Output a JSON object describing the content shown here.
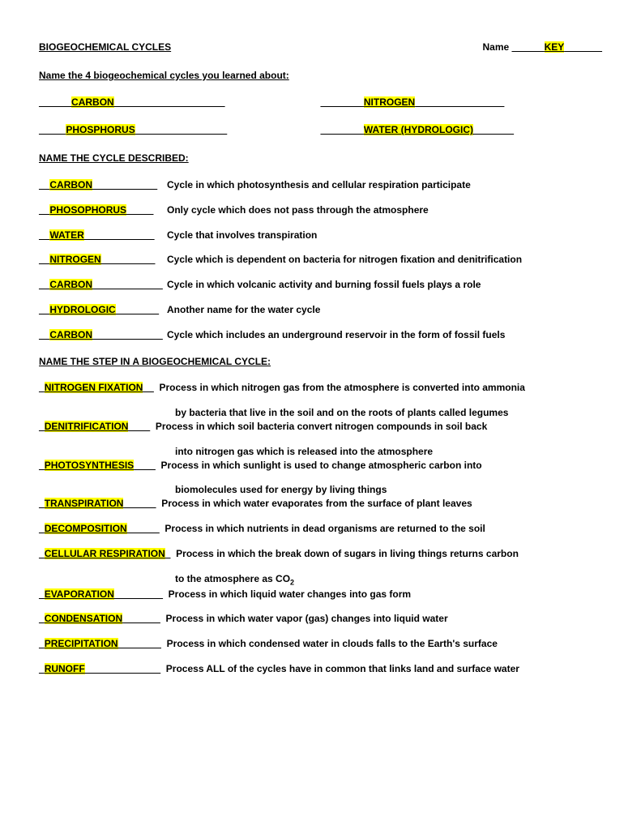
{
  "header": {
    "title": "BIOGEOCHEMICAL CYCLES",
    "name_label": "Name ",
    "blank_prefix": "______",
    "key_text": "KEY",
    "blank_suffix": "_______"
  },
  "section1": {
    "heading": "Name the 4 biogeochemical cycles you learned about:",
    "cycles": [
      {
        "prefix": "______",
        "answer": "CARBON",
        "suffix": "______ ______________"
      },
      {
        "prefix": "________",
        "answer": "NITROGEN",
        "suffix": " ________________"
      },
      {
        "prefix": "_____",
        "answer": "PHOSPHORUS",
        "suffix": "_________________"
      },
      {
        "prefix": "________",
        "answer": "WATER (HYDROLOGIC)",
        "suffix": " _______"
      }
    ]
  },
  "section2": {
    "heading": "NAME THE CYCLE DESCRIBED:",
    "items": [
      {
        "answer": "CARBON",
        "fill": "____________",
        "desc": "Cycle in which photosynthesis and cellular respiration participate"
      },
      {
        "answer": "PHOSOPHORUS",
        "fill": "_____",
        "desc": "Only cycle which does not pass through the atmosphere"
      },
      {
        "answer": "WATER",
        "fill": "_____________",
        "desc": "Cycle that involves transpiration"
      },
      {
        "answer": "NITROGEN",
        "fill": "__________",
        "desc": "Cycle which is dependent on bacteria for nitrogen fixation and denitrification"
      },
      {
        "answer": "CARBON",
        "fill": "_____________",
        "desc": "Cycle in which volcanic activity and burning fossil fuels plays a role"
      },
      {
        "answer": "HYDROLOGIC",
        "fill": "________",
        "desc": "Another name for the water cycle"
      },
      {
        "answer": "CARBON",
        "fill": "_____________",
        "desc": "Cycle which includes an underground reservoir in the form of fossil fuels"
      }
    ]
  },
  "section3": {
    "heading": "NAME THE STEP IN A BIOGEOCHEMICAL CYCLE:",
    "items": [
      {
        "answer": "NITROGEN FIXATION",
        "fill": "__",
        "desc": "Process in which nitrogen gas from the atmosphere is converted into ammonia",
        "cont": "by bacteria that live in the soil and on the roots of plants called legumes"
      },
      {
        "answer": "DENITRIFICATION",
        "fill": "____",
        "desc": "Process in which soil bacteria convert nitrogen compounds in soil back",
        "cont": "into nitrogen gas which is released into the atmosphere"
      },
      {
        "answer": "PHOTOSYNTHESIS",
        "fill": "____",
        "desc": "Process in which sunlight is used to change atmospheric carbon into",
        "cont": "biomolecules used for energy by living things"
      },
      {
        "answer": "TRANSPIRATION",
        "fill": "______",
        "desc": "Process in which water evaporates from the surface of plant leaves",
        "cont": ""
      },
      {
        "answer": "DECOMPOSITION",
        "fill": "______",
        "desc": "Process in which nutrients in dead organisms are returned to the soil",
        "cont": ""
      },
      {
        "answer": "CELLULAR RESPIRATION",
        "fill": "_",
        "desc": "Process in which the break down of sugars in living things returns carbon",
        "cont_html": "to the atmosphere as CO<sub>2</sub>"
      },
      {
        "answer": "EVAPORATION",
        "fill": "_________",
        "desc": "Process in which liquid water changes into gas form",
        "cont": ""
      },
      {
        "answer": "CONDENSATION",
        "fill": "_______",
        "desc": "Process in which water vapor (gas) changes into liquid water",
        "cont": ""
      },
      {
        "answer": "PRECIPITATION",
        "fill": "________",
        "desc": "Process in which condensed water in clouds falls to the Earth's surface",
        "cont": ""
      },
      {
        "answer": "RUNOFF",
        "fill": "______________",
        "desc": "Process ALL of the cycles have in common that links land and surface water",
        "cont": ""
      }
    ]
  },
  "colors": {
    "highlight": "#ffff00",
    "text": "#000000",
    "background": "#ffffff"
  }
}
